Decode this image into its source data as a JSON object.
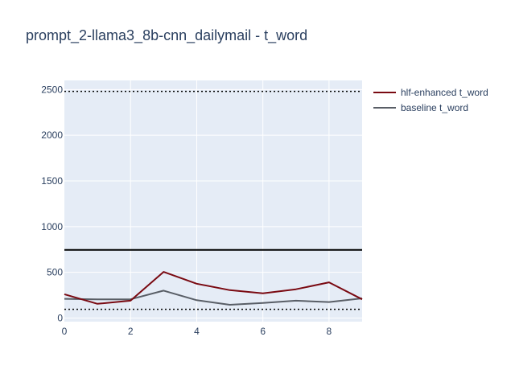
{
  "chart_data": {
    "type": "line",
    "title": "prompt_2-llama3_8b-cnn_dailymail - t_word",
    "xlabel": "",
    "ylabel": "",
    "xlim": [
      0,
      9
    ],
    "ylim": [
      -40,
      2600
    ],
    "xticks": [
      0,
      2,
      4,
      6,
      8
    ],
    "yticks": [
      0,
      500,
      1000,
      1500,
      2000,
      2500
    ],
    "x": [
      0,
      1,
      2,
      3,
      4,
      5,
      6,
      7,
      8,
      9
    ],
    "series": [
      {
        "name": "hlf-enhanced t_word",
        "color": "#7a0a12",
        "values": [
          260,
          155,
          190,
          505,
          375,
          305,
          270,
          315,
          390,
          205
        ]
      },
      {
        "name": "baseline t_word",
        "color": "#595e66",
        "values": [
          210,
          205,
          205,
          300,
          195,
          145,
          165,
          190,
          175,
          215
        ]
      }
    ],
    "reference_lines": [
      {
        "y": 745,
        "style": "solid",
        "color": "#000000"
      },
      {
        "y": 2480,
        "style": "dotted",
        "color": "#000000"
      },
      {
        "y": 95,
        "style": "dotted",
        "color": "#000000"
      }
    ],
    "grid": true,
    "legend_position": "top-right",
    "plot_background": "#e5ecf6"
  }
}
